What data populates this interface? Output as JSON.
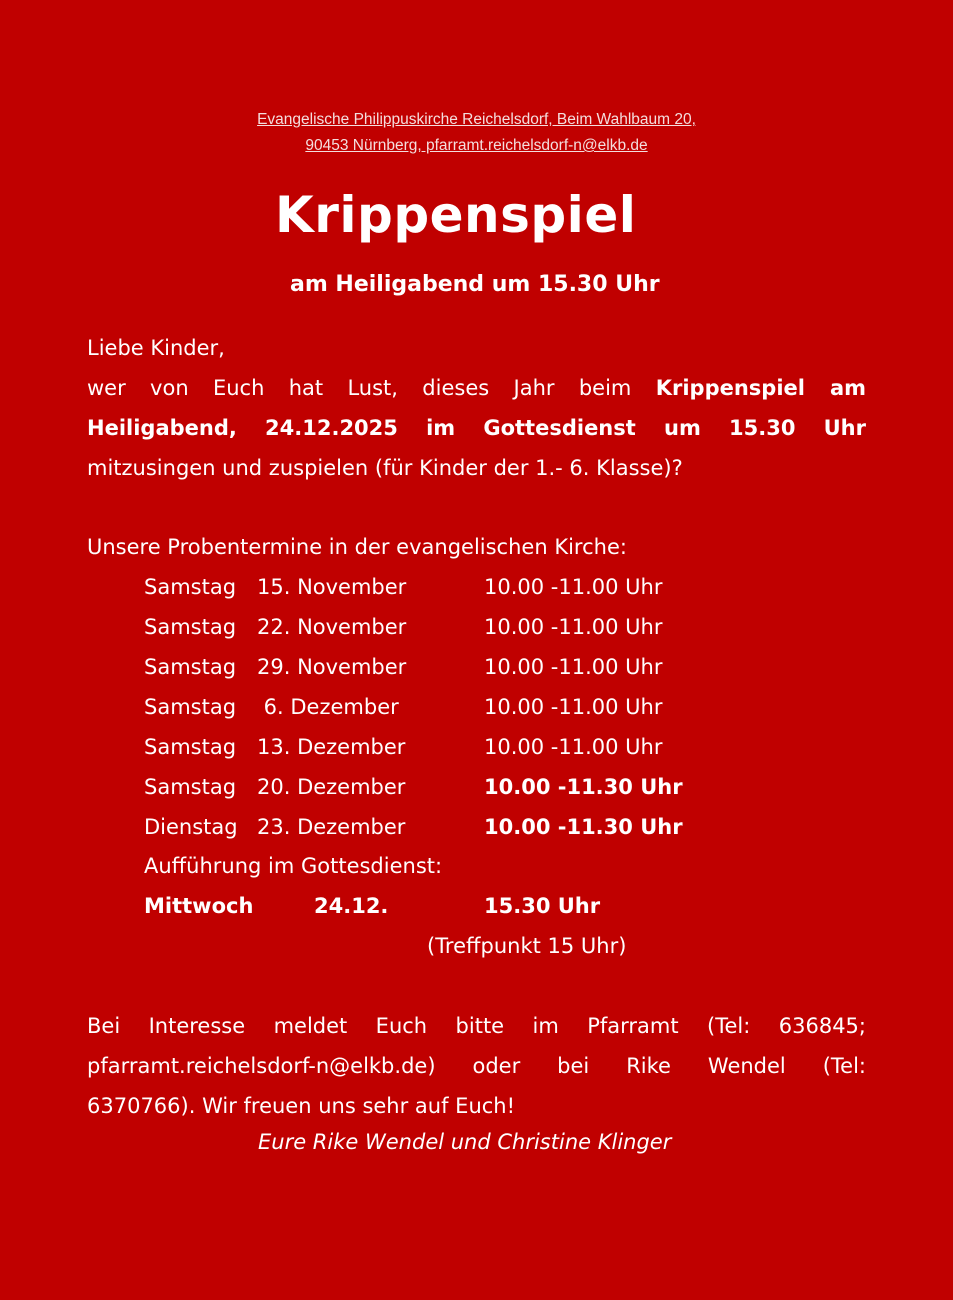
{
  "header": {
    "address_line1": "Evangelische Philippuskirche Reichelsdorf, Beim Wahlbaum 20,",
    "address_line2": "90453 Nürnberg, pfarramt.reichelsdorf-n@elkb.de"
  },
  "title": "Krippenspiel",
  "subtitle": "am Heiligabend um 15.30 Uhr",
  "intro": {
    "greeting": "Liebe Kinder,",
    "line2_plain": "wer von Euch hat Lust, dieses Jahr beim",
    "line2_bold": "Krippenspiel am",
    "line3_bold": "Heiligabend, 24.12.2025 im Gottesdienst um 15.30 Uhr",
    "line4": "mitzusingen und zuspielen (für Kinder der 1.- 6. Klasse)?"
  },
  "schedule": {
    "heading": "Unsere Probentermine in der evangelischen Kirche:",
    "rows": [
      {
        "day": "Samstag",
        "date": "15. November",
        "time": "10.00 -11.00 Uhr",
        "bold": false
      },
      {
        "day": "Samstag",
        "date": "22. November",
        "time": "10.00 -11.00 Uhr",
        "bold": false
      },
      {
        "day": "Samstag",
        "date": "29. November",
        "time": "10.00 -11.00 Uhr",
        "bold": false
      },
      {
        "day": "Samstag",
        "date": " 6. Dezember",
        "time": "10.00 -11.00 Uhr",
        "bold": false
      },
      {
        "day": "Samstag",
        "date": "13. Dezember",
        "time": "10.00 -11.00 Uhr",
        "bold": false
      },
      {
        "day": "Samstag",
        "date": "20. Dezember",
        "time": "10.00 -11.30 Uhr",
        "bold": true
      },
      {
        "day": "Dienstag",
        "date": "23. Dezember",
        "time": "10.00 -11.30 Uhr",
        "bold": true
      }
    ],
    "performance_label": "Aufführung im Gottesdienst:",
    "performance": {
      "day": "Mittwoch",
      "date": "24.12.",
      "time": "15.30 Uhr"
    },
    "meeting_point": "(Treffpunkt 15 Uhr)"
  },
  "contact": {
    "line1": "Bei Interesse meldet Euch bitte im Pfarramt (Tel: 636845;",
    "line2": "pfarramt.reichelsdorf-n@elkb.de) oder bei Rike Wendel (Tel:",
    "line3": "6370766). Wir freuen uns sehr auf Euch!",
    "signature": "Eure Rike Wendel und Christine Klinger"
  },
  "colors": {
    "background": "#c00000",
    "text": "#ffffff"
  }
}
